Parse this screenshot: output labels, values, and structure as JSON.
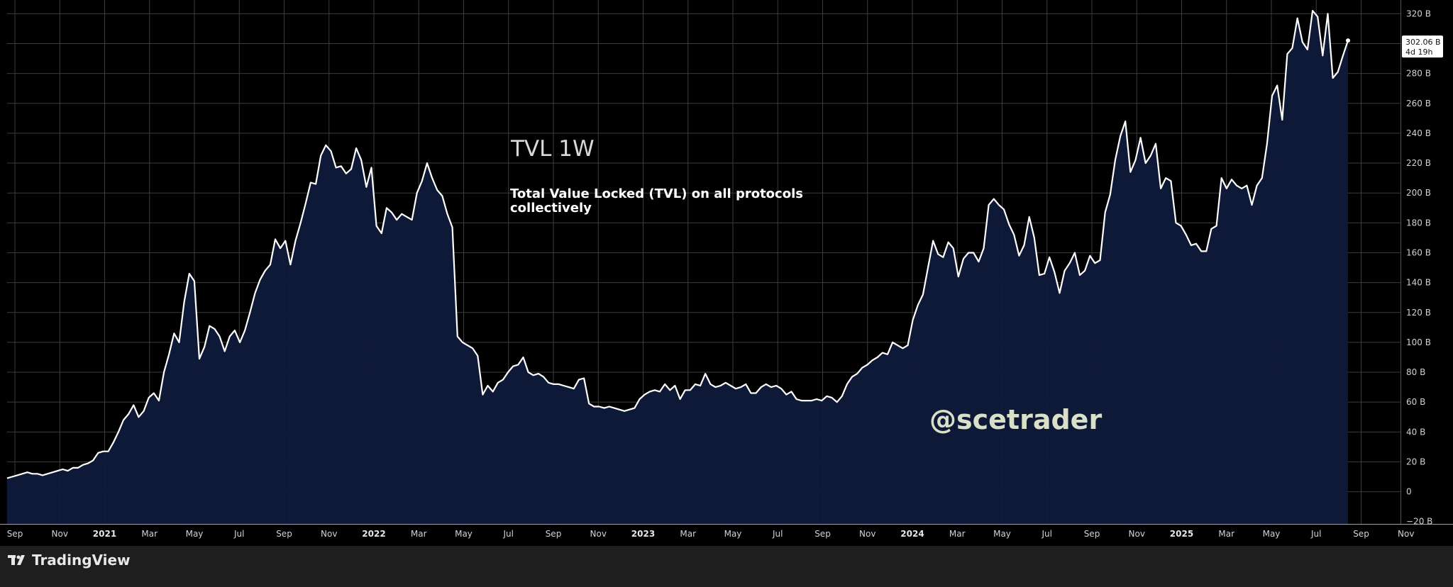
{
  "chart_data": {
    "type": "area",
    "title": "TVL 1W",
    "subtitle": [
      "Total Value Locked (TVL) on all protocols",
      "collectively"
    ],
    "watermark": "@scetrader",
    "ylim": [
      -20,
      330
    ],
    "y_ticks": [
      "320 B",
      "300 B",
      "280 B",
      "260 B",
      "240 B",
      "220 B",
      "200 B",
      "180 B",
      "160 B",
      "140 B",
      "120 B",
      "100 B",
      "80 B",
      "60 B",
      "40 B",
      "20 B",
      "0",
      "−20 B"
    ],
    "x_ticks": [
      {
        "label": "Sep",
        "bold": false
      },
      {
        "label": "Nov",
        "bold": false
      },
      {
        "label": "2021",
        "bold": true
      },
      {
        "label": "Mar",
        "bold": false
      },
      {
        "label": "May",
        "bold": false
      },
      {
        "label": "Jul",
        "bold": false
      },
      {
        "label": "Sep",
        "bold": false
      },
      {
        "label": "Nov",
        "bold": false
      },
      {
        "label": "2022",
        "bold": true
      },
      {
        "label": "Mar",
        "bold": false
      },
      {
        "label": "May",
        "bold": false
      },
      {
        "label": "Jul",
        "bold": false
      },
      {
        "label": "Sep",
        "bold": false
      },
      {
        "label": "Nov",
        "bold": false
      },
      {
        "label": "2023",
        "bold": true
      },
      {
        "label": "Mar",
        "bold": false
      },
      {
        "label": "May",
        "bold": false
      },
      {
        "label": "Jul",
        "bold": false
      },
      {
        "label": "Sep",
        "bold": false
      },
      {
        "label": "Nov",
        "bold": false
      },
      {
        "label": "2024",
        "bold": true
      },
      {
        "label": "Mar",
        "bold": false
      },
      {
        "label": "May",
        "bold": false
      },
      {
        "label": "Jul",
        "bold": false
      },
      {
        "label": "Sep",
        "bold": false
      },
      {
        "label": "Nov",
        "bold": false
      },
      {
        "label": "2025",
        "bold": true
      },
      {
        "label": "Mar",
        "bold": false
      },
      {
        "label": "May",
        "bold": false
      },
      {
        "label": "Jul",
        "bold": false
      },
      {
        "label": "Sep",
        "bold": false
      },
      {
        "label": "Nov",
        "bold": false
      }
    ],
    "series": [
      {
        "x_start": "2020-09",
        "x_end": "2025-11",
        "values": [
          9,
          10,
          11,
          12,
          13,
          12,
          12,
          11,
          12,
          13,
          14,
          15,
          14,
          16,
          16,
          18,
          19,
          21,
          26,
          27,
          27,
          33,
          40,
          48,
          52,
          58,
          50,
          54,
          63,
          66,
          61,
          80,
          92,
          106,
          100,
          127,
          146,
          141,
          89,
          97,
          111,
          109,
          104,
          94,
          104,
          108,
          100,
          108,
          120,
          133,
          142,
          148,
          152,
          169,
          163,
          168,
          152,
          168,
          180,
          193,
          207,
          206,
          225,
          232,
          228,
          217,
          218,
          213,
          216,
          230,
          222,
          204,
          217,
          178,
          173,
          190,
          187,
          182,
          186,
          184,
          182,
          200,
          208,
          220,
          210,
          202,
          198,
          186,
          177,
          104,
          100,
          98,
          96,
          91,
          65,
          71,
          67,
          73,
          75,
          80,
          84,
          85,
          90,
          80,
          78,
          79,
          77,
          73,
          72,
          72,
          71,
          70,
          69,
          75,
          76,
          59,
          57,
          57,
          56,
          57,
          56,
          55,
          54,
          55,
          56,
          62,
          65,
          67,
          68,
          67,
          72,
          68,
          71,
          62,
          68,
          68,
          72,
          71,
          79,
          72,
          70,
          71,
          73,
          71,
          69,
          70,
          72,
          66,
          66,
          70,
          72,
          70,
          71,
          69,
          65,
          67,
          62,
          61,
          61,
          61,
          62,
          61,
          64,
          63,
          60,
          64,
          72,
          77,
          79,
          83,
          85,
          88,
          90,
          93,
          92,
          100,
          98,
          96,
          98,
          115,
          125,
          132,
          150,
          168,
          159,
          157,
          167,
          163,
          144,
          156,
          160,
          160,
          154,
          163,
          192,
          196,
          192,
          189,
          179,
          172,
          158,
          165,
          184,
          170,
          145,
          146,
          157,
          147,
          133,
          148,
          153,
          160,
          145,
          148,
          158,
          153,
          155,
          187,
          199,
          222,
          238,
          248,
          214,
          222,
          237,
          220,
          225,
          233,
          203,
          210,
          208,
          180,
          178,
          172,
          165,
          166,
          161,
          161,
          176,
          178,
          210,
          203,
          209,
          205,
          203,
          205,
          192,
          205,
          210,
          233,
          265,
          272,
          249,
          293,
          297,
          317,
          301,
          296,
          322,
          318,
          292,
          320,
          277,
          281,
          292,
          302.06
        ]
      }
    ],
    "last_value_label": "302.06 B",
    "countdown_label": "4d 19h",
    "colors": {
      "background": "#000000",
      "line": "#ffffff",
      "area_fill": "#0f1a3a",
      "grid": "#3c3c3c",
      "axis_panel": "#000000",
      "footer": "#1e1e1e"
    }
  },
  "footer": {
    "brand": "TradingView",
    "logo_icon": "tradingview-logo-icon"
  }
}
